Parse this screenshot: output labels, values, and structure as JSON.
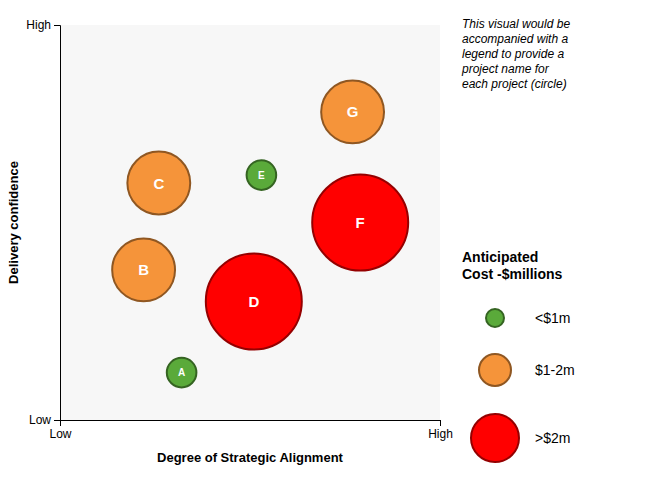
{
  "chart_data": {
    "type": "scatter",
    "annotation": "This visual would be\naccompanied with a\nlegend to provide a\nproject name for\neach project (circle)",
    "xlabel": "Degree of Strategic Alignment",
    "ylabel": "Delivery confidence",
    "xlim": [
      0,
      10
    ],
    "ylim": [
      0,
      10
    ],
    "xticks": [
      {
        "value": 0,
        "label": "Low"
      },
      {
        "value": 10,
        "label": "High"
      }
    ],
    "yticks": [
      {
        "value": 0,
        "label": "Low"
      },
      {
        "value": 10,
        "label": "High"
      }
    ],
    "grid": false,
    "labels": [
      "A",
      "B",
      "C",
      "D",
      "E",
      "F",
      "G"
    ],
    "x": [
      3.2,
      2.2,
      2.6,
      5.1,
      5.3,
      7.9,
      7.7
    ],
    "values": [
      1.2,
      3.8,
      6.0,
      3.0,
      6.2,
      5.0,
      7.8
    ],
    "sizes": [
      400,
      1800,
      1800,
      4200,
      400,
      4200,
      1800
    ],
    "colors": [
      "#5aaa3a",
      "#f5943a",
      "#f5943a",
      "#ff0000",
      "#5aaa3a",
      "#ff0000",
      "#f5943a"
    ],
    "legend_title": "Anticipated\nCost -$millions",
    "legend_items": [
      {
        "name": "<$1m",
        "color": "#5aaa3a"
      },
      {
        "name": "$1-2m",
        "color": "#f5943a"
      },
      {
        "name": ">$2m",
        "color": "#ff0000"
      }
    ]
  }
}
